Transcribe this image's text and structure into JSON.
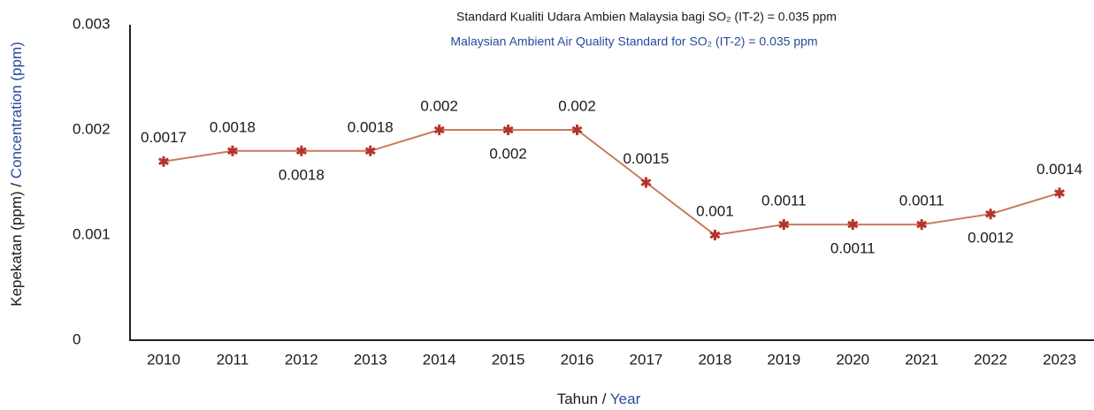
{
  "chart_data": {
    "type": "line",
    "annotations": [
      "Standard Kualiti Udara Ambien Malaysia bagi SO₂ (IT-2) = 0.035 ppm",
      "Malaysian Ambient Air Quality Standard for SO₂ (IT-2) = 0.035 ppm"
    ],
    "ylabel": [
      "Kepekatan (ppm) / ",
      "Concentration (ppm)"
    ],
    "xlabel": [
      "Tahun / ",
      "Year"
    ],
    "categories": [
      "2010",
      "2011",
      "2012",
      "2013",
      "2014",
      "2015",
      "2016",
      "2017",
      "2018",
      "2019",
      "2020",
      "2021",
      "2022",
      "2023"
    ],
    "values": [
      0.0017,
      0.0018,
      0.0018,
      0.0018,
      0.002,
      0.002,
      0.002,
      0.0015,
      0.001,
      0.0011,
      0.0011,
      0.0011,
      0.0012,
      0.0014
    ],
    "color": "#c97b5b",
    "marker_color": "#b5332b",
    "ylim": [
      0,
      0.003
    ],
    "yticks": [
      0,
      0.001,
      0.002,
      0.003
    ],
    "grid": false
  }
}
